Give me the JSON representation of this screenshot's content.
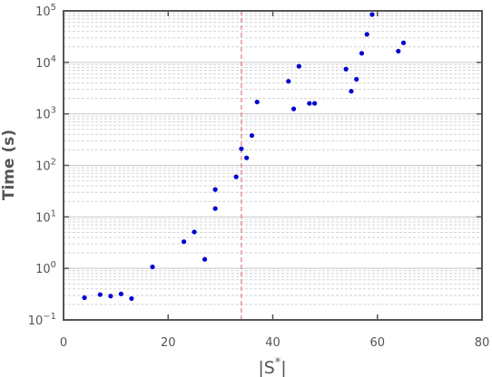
{
  "chart_data": {
    "type": "scatter",
    "title": "",
    "xlabel": "|S*|",
    "ylabel": "Time (s)",
    "xscale": "linear",
    "yscale": "log",
    "xlim": [
      0,
      80
    ],
    "ylim": [
      0.1,
      100000
    ],
    "x_ticks": [
      0,
      20,
      40,
      60,
      80
    ],
    "y_ticks": [
      {
        "value": 0.1,
        "base": "10",
        "exp": "−1"
      },
      {
        "value": 1,
        "base": "10",
        "exp": "0"
      },
      {
        "value": 10,
        "base": "10",
        "exp": "1"
      },
      {
        "value": 100,
        "base": "10",
        "exp": "2"
      },
      {
        "value": 1000,
        "base": "10",
        "exp": "3"
      },
      {
        "value": 10000,
        "base": "10",
        "exp": "4"
      },
      {
        "value": 100000,
        "base": "10",
        "exp": "5"
      }
    ],
    "grid": {
      "horizontal_major": true,
      "horizontal_minor": true,
      "vertical": false
    },
    "reference_line": {
      "x": 34,
      "orientation": "vertical",
      "style": "dashed",
      "color": "#e06060"
    },
    "marker_color": "#0000cc",
    "points": [
      {
        "x": 4,
        "y": 0.27
      },
      {
        "x": 7,
        "y": 0.31
      },
      {
        "x": 9,
        "y": 0.29
      },
      {
        "x": 11,
        "y": 0.32
      },
      {
        "x": 13,
        "y": 0.26
      },
      {
        "x": 17,
        "y": 1.07
      },
      {
        "x": 23,
        "y": 3.3
      },
      {
        "x": 25,
        "y": 5.1
      },
      {
        "x": 27,
        "y": 1.5
      },
      {
        "x": 29,
        "y": 34
      },
      {
        "x": 29,
        "y": 14.5
      },
      {
        "x": 33,
        "y": 60
      },
      {
        "x": 34,
        "y": 210
      },
      {
        "x": 35,
        "y": 140
      },
      {
        "x": 36,
        "y": 380
      },
      {
        "x": 37,
        "y": 1700
      },
      {
        "x": 43,
        "y": 4300
      },
      {
        "x": 44,
        "y": 1250
      },
      {
        "x": 45,
        "y": 8400
      },
      {
        "x": 47,
        "y": 1600
      },
      {
        "x": 48,
        "y": 1600
      },
      {
        "x": 54,
        "y": 7400
      },
      {
        "x": 55,
        "y": 2750
      },
      {
        "x": 56,
        "y": 4700
      },
      {
        "x": 57,
        "y": 15000
      },
      {
        "x": 58,
        "y": 35000
      },
      {
        "x": 59,
        "y": 85000
      },
      {
        "x": 64,
        "y": 16500
      },
      {
        "x": 65,
        "y": 24000
      }
    ]
  }
}
